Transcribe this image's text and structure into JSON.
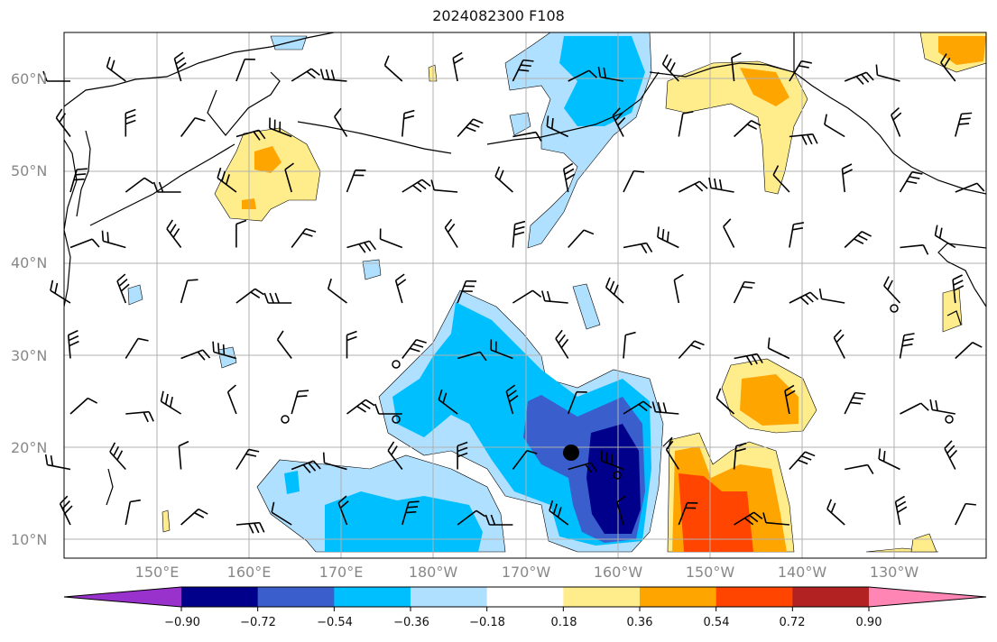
{
  "title": "2024082300 F108",
  "lat_labels": [
    "60°N",
    "50°N",
    "40°N",
    "30°N",
    "20°N",
    "10°N"
  ],
  "lon_labels": [
    "150°E",
    "160°E",
    "170°E",
    "180°W",
    "170°W",
    "160°W",
    "150°W",
    "140°W",
    "130°W"
  ],
  "colorbar": {
    "ticks": [
      "−0.90",
      "−0.72",
      "−0.54",
      "−0.36",
      "−0.18",
      "0.18",
      "0.36",
      "0.54",
      "0.72",
      "0.90"
    ],
    "colors": [
      "#9932cc",
      "#00008b",
      "#3a5fcd",
      "#00bfff",
      "#b0e0ff",
      "#ffffff",
      "#ffec8b",
      "#ffa500",
      "#ff4500",
      "#b22222",
      "#ff85b4"
    ]
  },
  "colors": {
    "land": "#000000",
    "grid": "#b0b0b0",
    "tc_marker": "#000000"
  },
  "icons": [
    "wind-barb-icon",
    "calm-circle-icon",
    "storm-center-icon"
  ]
}
